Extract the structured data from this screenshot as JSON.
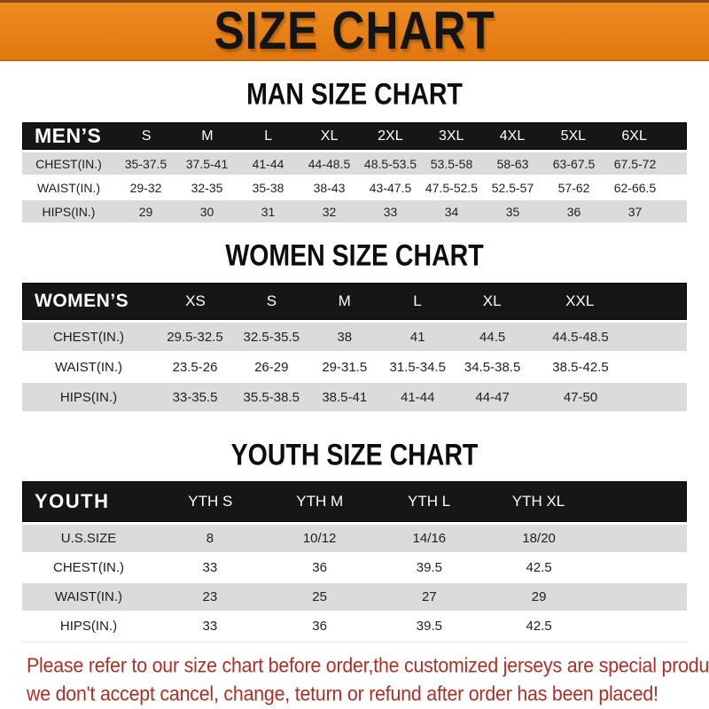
{
  "banner": {
    "title": "SIZE CHART",
    "bg_color": "#E8821A"
  },
  "man": {
    "heading": "MAN SIZE CHART",
    "table": {
      "header": [
        "MEN’S",
        "S",
        "M",
        "L",
        "XL",
        "2XL",
        "3XL",
        "4XL",
        "5XL",
        "6XL"
      ],
      "rows": [
        {
          "label": "CHEST(IN.)",
          "values": [
            "35-37.5",
            "37.5-41",
            "41-44",
            "44-48.5",
            "48.5-53.5",
            "53.5-58",
            "58-63",
            "63-67.5",
            "67.5-72"
          ]
        },
        {
          "label": "WAIST(IN.)",
          "values": [
            "29-32",
            "32-35",
            "35-38",
            "38-43",
            "43-47.5",
            "47.5-52.5",
            "52.5-57",
            "57-62",
            "62-66.5"
          ]
        },
        {
          "label": "HIPS(IN.)",
          "values": [
            "29",
            "30",
            "31",
            "32",
            "33",
            "34",
            "35",
            "36",
            "37"
          ]
        }
      ]
    }
  },
  "women": {
    "heading": "WOMEN SIZE CHART",
    "table": {
      "header": [
        "WOMEN’S",
        "XS",
        "S",
        "M",
        "L",
        "XL",
        "XXL"
      ],
      "rows": [
        {
          "label": "CHEST(IN.)",
          "values": [
            "29.5-32.5",
            "32.5-35.5",
            "38",
            "41",
            "44.5",
            "44.5-48.5"
          ]
        },
        {
          "label": "WAIST(IN.)",
          "values": [
            "23.5-26",
            "26-29",
            "29-31.5",
            "31.5-34.5",
            "34.5-38.5",
            "38.5-42.5"
          ]
        },
        {
          "label": "HIPS(IN.)",
          "values": [
            "33-35.5",
            "35.5-38.5",
            "38.5-41",
            "41-44",
            "44-47",
            "47-50"
          ]
        }
      ]
    }
  },
  "youth": {
    "heading": "YOUTH SIZE CHART",
    "table": {
      "header": [
        "YOUTH",
        "YTH S",
        "YTH M",
        "YTH L",
        "YTH XL"
      ],
      "rows": [
        {
          "label": "U.S.SIZE",
          "values": [
            "8",
            "10/12",
            "14/16",
            "18/20"
          ]
        },
        {
          "label": "CHEST(IN.)",
          "values": [
            "33",
            "36",
            "39.5",
            "42.5"
          ]
        },
        {
          "label": "WAIST(IN.)",
          "values": [
            "23",
            "25",
            "27",
            "29"
          ]
        },
        {
          "label": "HIPS(IN.)",
          "values": [
            "33",
            "36",
            "39.5",
            "42.5"
          ]
        }
      ]
    }
  },
  "note": {
    "line1": "Please refer to our size chart before order,the customized jerseys are special products,",
    "line2": "we don't accept cancel, change, teturn or refund after order has been placed!",
    "color": "#A93128"
  },
  "colors": {
    "banner_orange": "#E8821A",
    "header_black": "#161616",
    "row_gray": "#DBDBDB",
    "note_red": "#A93128"
  }
}
